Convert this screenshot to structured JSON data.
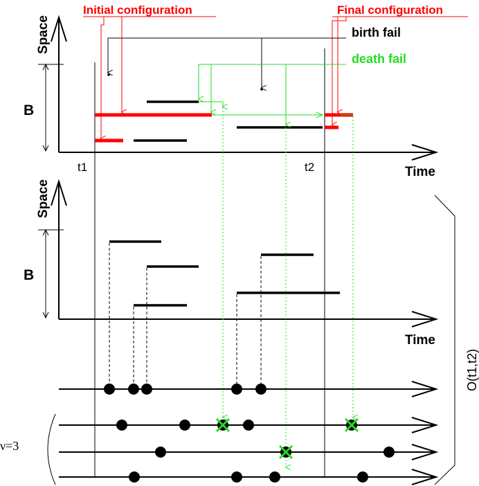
{
  "labels": {
    "initial_configuration": "Initial configuration",
    "final_configuration": "Final configuration",
    "birth_fail": "birth fail",
    "death_fail": "death fail",
    "space_top": "Space",
    "space_bottom": "Space",
    "b_top": "B",
    "b_bottom": "B",
    "time_top": "Time",
    "time_bottom": "Time",
    "t1": "t1",
    "t2": "t2",
    "nu": "ν=3",
    "o_t1_t2": "O(t1,t2)"
  },
  "colors": {
    "black": "#000000",
    "red": "#ff0000",
    "green": "#22dd22"
  }
}
